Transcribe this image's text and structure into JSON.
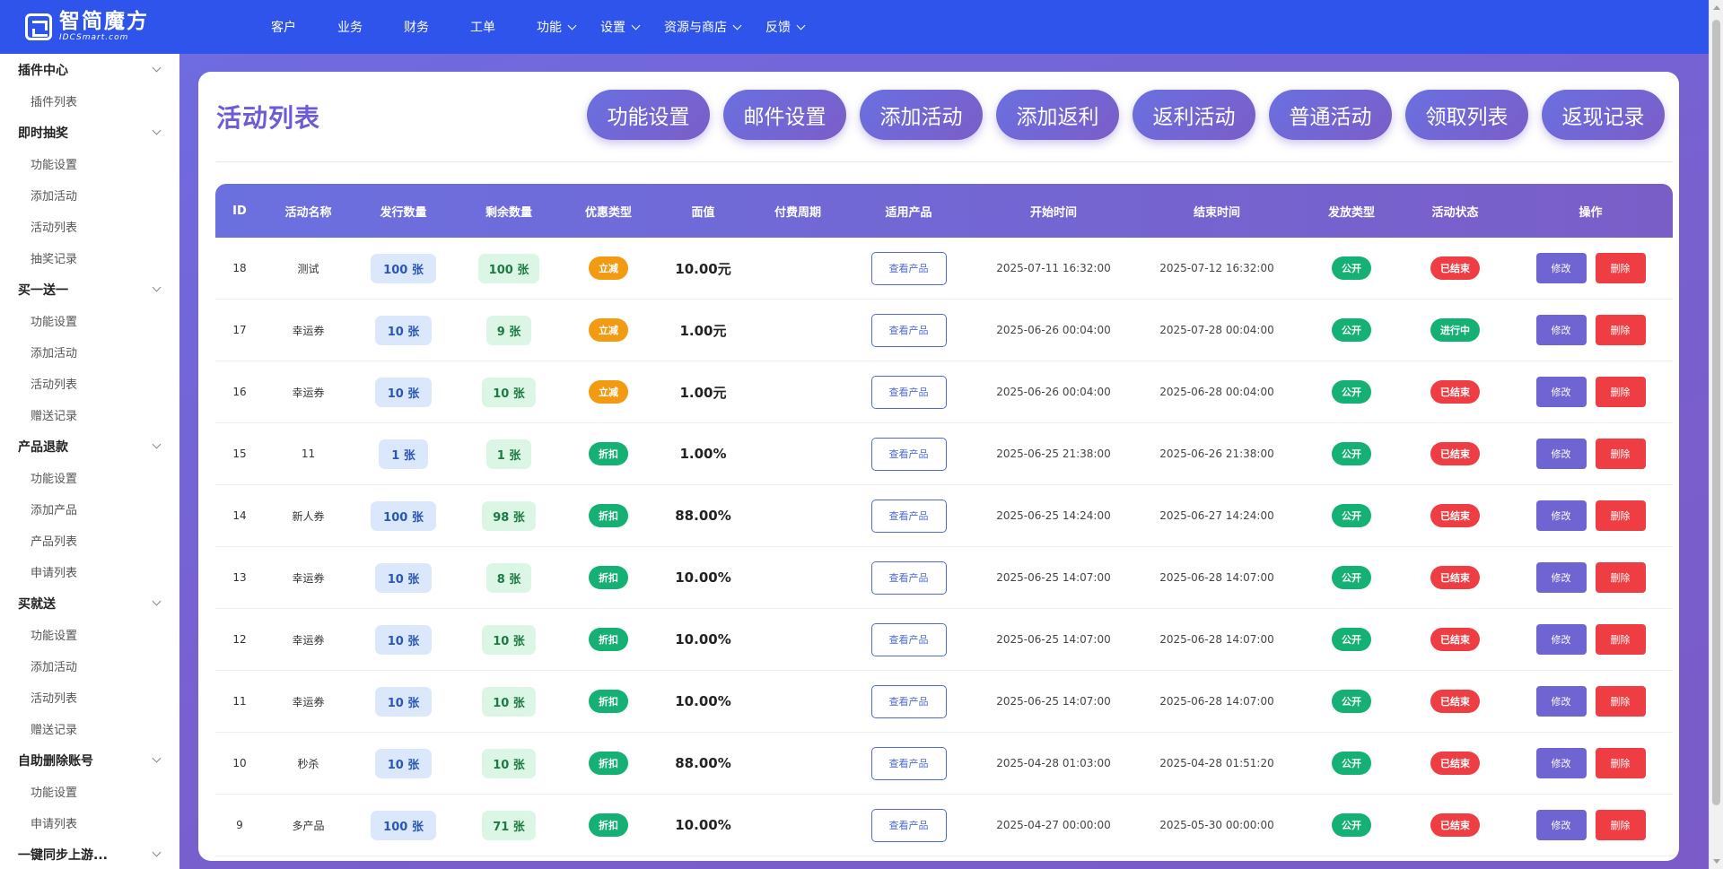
{
  "brand": {
    "name": "智简魔方",
    "sub": "IDCSmart.com"
  },
  "nav": {
    "items": [
      {
        "label": "客户",
        "dropdown": false
      },
      {
        "label": "业务",
        "dropdown": false
      },
      {
        "label": "财务",
        "dropdown": false
      },
      {
        "label": "工单",
        "dropdown": false
      },
      {
        "label": "功能",
        "dropdown": true
      },
      {
        "label": "设置",
        "dropdown": true
      },
      {
        "label": "资源与商店",
        "dropdown": true
      },
      {
        "label": "反馈",
        "dropdown": true
      }
    ]
  },
  "sidebar": {
    "groups": [
      {
        "title": "插件中心",
        "items": [
          "插件列表"
        ]
      },
      {
        "title": "即时抽奖",
        "items": [
          "功能设置",
          "添加活动",
          "活动列表",
          "抽奖记录"
        ]
      },
      {
        "title": "买一送一",
        "items": [
          "功能设置",
          "添加活动",
          "活动列表",
          "赠送记录"
        ]
      },
      {
        "title": "产品退款",
        "items": [
          "功能设置",
          "添加产品",
          "产品列表",
          "申请列表"
        ]
      },
      {
        "title": "买就送",
        "items": [
          "功能设置",
          "添加活动",
          "活动列表",
          "赠送记录"
        ]
      },
      {
        "title": "自助删除账号",
        "items": [
          "功能设置",
          "申请列表"
        ]
      },
      {
        "title": "一键同步上游...",
        "items": []
      }
    ]
  },
  "page": {
    "title": "活动列表"
  },
  "actions": [
    "功能设置",
    "邮件设置",
    "添加活动",
    "添加返利",
    "返利活动",
    "普通活动",
    "领取列表",
    "返现记录"
  ],
  "table": {
    "headers": [
      "ID",
      "活动名称",
      "发行数量",
      "剩余数量",
      "优惠类型",
      "面值",
      "付费周期",
      "适用产品",
      "开始时间",
      "结束时间",
      "发放类型",
      "活动状态",
      "操作"
    ],
    "view_label": "查看产品",
    "edit_label": "修改",
    "delete_label": "删除",
    "rows": [
      {
        "id": "18",
        "name": "测试",
        "issued": "100 张",
        "remaining": "100 张",
        "type": "立减",
        "type_color": "orange",
        "value": "10.00元",
        "cycle": "",
        "start": "2025-07-11 16:32:00",
        "end": "2025-07-12 16:32:00",
        "dist": "公开",
        "status": "已结束",
        "status_color": "red"
      },
      {
        "id": "17",
        "name": "幸运券",
        "issued": "10 张",
        "remaining": "9 张",
        "type": "立减",
        "type_color": "orange",
        "value": "1.00元",
        "cycle": "",
        "start": "2025-06-26 00:04:00",
        "end": "2025-07-28 00:04:00",
        "dist": "公开",
        "status": "进行中",
        "status_color": "green"
      },
      {
        "id": "16",
        "name": "幸运券",
        "issued": "10 张",
        "remaining": "10 张",
        "type": "立减",
        "type_color": "orange",
        "value": "1.00元",
        "cycle": "",
        "start": "2025-06-26 00:04:00",
        "end": "2025-06-28 00:04:00",
        "dist": "公开",
        "status": "已结束",
        "status_color": "red"
      },
      {
        "id": "15",
        "name": "11",
        "issued": "1 张",
        "remaining": "1 张",
        "type": "折扣",
        "type_color": "green",
        "value": "1.00%",
        "cycle": "",
        "start": "2025-06-25 21:38:00",
        "end": "2025-06-26 21:38:00",
        "dist": "公开",
        "status": "已结束",
        "status_color": "red"
      },
      {
        "id": "14",
        "name": "新人券",
        "issued": "100 张",
        "remaining": "98 张",
        "type": "折扣",
        "type_color": "green",
        "value": "88.00%",
        "cycle": "",
        "start": "2025-06-25 14:24:00",
        "end": "2025-06-27 14:24:00",
        "dist": "公开",
        "status": "已结束",
        "status_color": "red"
      },
      {
        "id": "13",
        "name": "幸运券",
        "issued": "10 张",
        "remaining": "8 张",
        "type": "折扣",
        "type_color": "green",
        "value": "10.00%",
        "cycle": "",
        "start": "2025-06-25 14:07:00",
        "end": "2025-06-28 14:07:00",
        "dist": "公开",
        "status": "已结束",
        "status_color": "red"
      },
      {
        "id": "12",
        "name": "幸运券",
        "issued": "10 张",
        "remaining": "10 张",
        "type": "折扣",
        "type_color": "green",
        "value": "10.00%",
        "cycle": "",
        "start": "2025-06-25 14:07:00",
        "end": "2025-06-28 14:07:00",
        "dist": "公开",
        "status": "已结束",
        "status_color": "red"
      },
      {
        "id": "11",
        "name": "幸运券",
        "issued": "10 张",
        "remaining": "10 张",
        "type": "折扣",
        "type_color": "green",
        "value": "10.00%",
        "cycle": "",
        "start": "2025-06-25 14:07:00",
        "end": "2025-06-28 14:07:00",
        "dist": "公开",
        "status": "已结束",
        "status_color": "red"
      },
      {
        "id": "10",
        "name": "秒杀",
        "issued": "10 张",
        "remaining": "10 张",
        "type": "折扣",
        "type_color": "green",
        "value": "88.00%",
        "cycle": "",
        "start": "2025-04-28 01:03:00",
        "end": "2025-04-28 01:51:20",
        "dist": "公开",
        "status": "已结束",
        "status_color": "red"
      },
      {
        "id": "9",
        "name": "多产品",
        "issued": "100 张",
        "remaining": "71 张",
        "type": "折扣",
        "type_color": "green",
        "value": "10.00%",
        "cycle": "",
        "start": "2025-04-27 00:00:00",
        "end": "2025-05-30 00:00:00",
        "dist": "公开",
        "status": "已结束",
        "status_color": "red"
      }
    ]
  }
}
